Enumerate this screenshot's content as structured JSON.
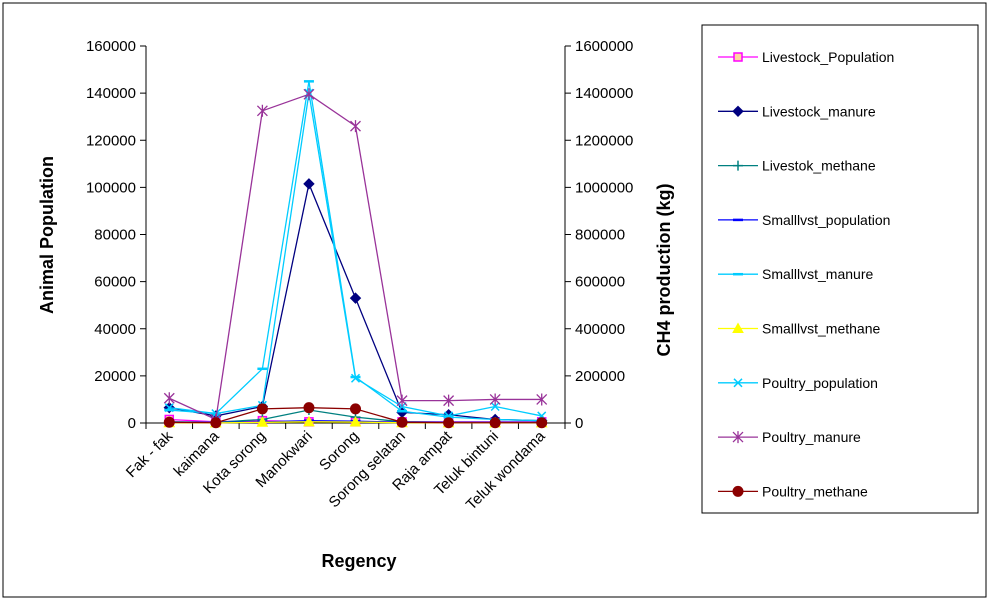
{
  "chart_data": {
    "type": "line",
    "title": "",
    "xlabel": "Regency",
    "ylabel": "Animal  Population",
    "y2label": "CH4  production  (kg)",
    "categories": [
      "Fak - fak",
      "kaimana",
      "Kota sorong",
      "Manokwari",
      "Sorong",
      "Sorong selatan",
      "Raja ampat",
      "Teluk bintuni",
      "Teluk wondama"
    ],
    "ylim": [
      0,
      160000
    ],
    "y2lim": [
      0,
      1600000
    ],
    "yticks": [
      "0",
      "20000",
      "40000",
      "60000",
      "80000",
      "100000",
      "120000",
      "140000",
      "160000"
    ],
    "y2ticks": [
      "0",
      "200000",
      "400000",
      "600000",
      "800000",
      "1000000",
      "1200000",
      "1400000",
      "1600000"
    ],
    "grid": false,
    "legend_position": "right",
    "series": [
      {
        "name": "Livestock_Population",
        "axis": "left",
        "color": "#ff00ff",
        "marker": "square-open",
        "values": [
          1500,
          500,
          1000,
          500,
          500,
          500,
          500,
          500,
          500
        ]
      },
      {
        "name": "Livestock_manure",
        "axis": "left",
        "color": "#000080",
        "marker": "diamond",
        "values": [
          6500,
          3000,
          7000,
          101500,
          53000,
          4500,
          3500,
          1500,
          1000
        ]
      },
      {
        "name": "Livestok_methane",
        "axis": "left",
        "color": "#008080",
        "marker": "plus",
        "values": [
          500,
          300,
          1500,
          5500,
          2500,
          500,
          300,
          300,
          300
        ]
      },
      {
        "name": "Smalllvst_population",
        "axis": "left",
        "color": "#0000ff",
        "marker": "dash",
        "values": [
          300,
          200,
          500,
          1000,
          800,
          300,
          200,
          200,
          200
        ]
      },
      {
        "name": "Smalllvst_manure",
        "axis": "left",
        "color": "#00ccff",
        "marker": "dash",
        "values": [
          5500,
          4000,
          23000,
          145000,
          19500,
          5000,
          2500,
          1500,
          1000
        ]
      },
      {
        "name": "Smalllvst_methane",
        "axis": "left",
        "color": "#ffff00",
        "marker": "triangle",
        "values": [
          100,
          50,
          300,
          500,
          400,
          100,
          50,
          50,
          50
        ]
      },
      {
        "name": "Poultry_population",
        "axis": "left",
        "color": "#00ccff",
        "marker": "x",
        "values": [
          6500,
          4000,
          7500,
          140000,
          19000,
          7000,
          3000,
          7000,
          3000
        ]
      },
      {
        "name": "Poultry_manure",
        "axis": "left",
        "color": "#993399",
        "marker": "star",
        "values": [
          10500,
          1500,
          132500,
          139500,
          126000,
          9500,
          9500,
          10000,
          10000
        ]
      },
      {
        "name": "Poultry_methane",
        "axis": "left",
        "color": "#8b0000",
        "marker": "circle",
        "values": [
          300,
          100,
          6000,
          6500,
          6000,
          300,
          100,
          100,
          100
        ]
      }
    ]
  }
}
